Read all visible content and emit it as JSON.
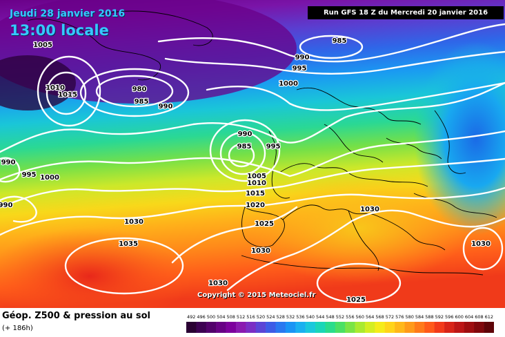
{
  "header": {
    "date": "Jeudi 28 janvier 2016",
    "time": "13:00 locale",
    "run": "Run GFS 18 Z du Mercredi 20 janvier 2016"
  },
  "footer": {
    "product": "Géop. Z500 & pression au sol",
    "lead_time": "(+ 186h)",
    "copyright": "Copyright © 2015 Meteociel.fr"
  },
  "legend": {
    "ticks": [
      "492",
      "496",
      "500",
      "504",
      "508",
      "512",
      "516",
      "520",
      "524",
      "528",
      "532",
      "536",
      "540",
      "544",
      "548",
      "552",
      "556",
      "560",
      "564",
      "568",
      "572",
      "576",
      "580",
      "584",
      "588",
      "592",
      "596",
      "600",
      "604",
      "608",
      "612"
    ],
    "colors": [
      "#2a0033",
      "#3d0052",
      "#52006b",
      "#680085",
      "#7d009d",
      "#8a1ab0",
      "#7a2ec4",
      "#5b45d6",
      "#3d5ce6",
      "#2a78f0",
      "#1a94f5",
      "#1ab0f0",
      "#1ac8dc",
      "#1ad6b8",
      "#2adc8c",
      "#4ae064",
      "#7ae445",
      "#aaea30",
      "#d4ee22",
      "#f5ec1a",
      "#ffd41a",
      "#ffb81a",
      "#ff9a1a",
      "#ff7a1a",
      "#ff5a1a",
      "#f23a1a",
      "#d82418",
      "#bc1616",
      "#9e0e10",
      "#80080c",
      "#5e0408"
    ]
  },
  "isobar_labels": [
    {
      "text": "1005"
    },
    {
      "text": "985"
    },
    {
      "text": "990"
    },
    {
      "text": "995"
    },
    {
      "text": "1010"
    },
    {
      "text": "1015"
    },
    {
      "text": "980"
    },
    {
      "text": "985"
    },
    {
      "text": "990"
    },
    {
      "text": "1000"
    },
    {
      "text": "990"
    },
    {
      "text": "985"
    },
    {
      "text": "995"
    },
    {
      "text": "990"
    },
    {
      "text": "995"
    },
    {
      "text": "1000"
    },
    {
      "text": "990"
    },
    {
      "text": "1005"
    },
    {
      "text": "1010"
    },
    {
      "text": "1015"
    },
    {
      "text": "1020"
    },
    {
      "text": "1025"
    },
    {
      "text": "1030"
    },
    {
      "text": "1030"
    },
    {
      "text": "1035"
    },
    {
      "text": "1030"
    },
    {
      "text": "1030"
    },
    {
      "text": "1030"
    },
    {
      "text": "1025"
    }
  ]
}
